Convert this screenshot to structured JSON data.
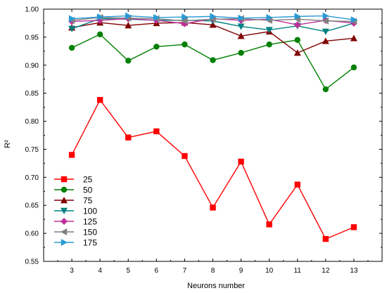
{
  "chart_data": {
    "type": "line",
    "title": "",
    "xlabel": "Neurons number",
    "ylabel": "R²",
    "categories": [
      3,
      4,
      5,
      6,
      7,
      8,
      9,
      10,
      11,
      12,
      13
    ],
    "xlim": [
      2,
      14
    ],
    "ylim": [
      0.55,
      1.0
    ],
    "yticks": [
      "0.55",
      "0.60",
      "0.65",
      "0.70",
      "0.75",
      "0.80",
      "0.85",
      "0.90",
      "0.95",
      "1.00"
    ],
    "grid": false,
    "legend_position": "bottom-left",
    "series": [
      {
        "name": "25",
        "color": "#ff0000",
        "marker": "square",
        "values": [
          0.74,
          0.838,
          0.771,
          0.782,
          0.738,
          0.646,
          0.728,
          0.616,
          0.687,
          0.59,
          0.611
        ]
      },
      {
        "name": "50",
        "color": "#008000",
        "marker": "circle",
        "values": [
          0.931,
          0.955,
          0.908,
          0.933,
          0.937,
          0.909,
          0.922,
          0.937,
          0.945,
          0.857,
          0.896
        ]
      },
      {
        "name": "75",
        "color": "#800000",
        "marker": "triangle-up",
        "values": [
          0.967,
          0.976,
          0.971,
          0.975,
          0.976,
          0.972,
          0.952,
          0.96,
          0.922,
          0.943,
          0.948
        ]
      },
      {
        "name": "100",
        "color": "#008080",
        "marker": "triangle-down",
        "values": [
          0.965,
          0.983,
          0.982,
          0.98,
          0.98,
          0.979,
          0.969,
          0.963,
          0.97,
          0.96,
          0.975
        ]
      },
      {
        "name": "125",
        "color": "#bf2f9a",
        "marker": "diamond",
        "values": [
          0.978,
          0.98,
          0.983,
          0.98,
          0.974,
          0.983,
          0.98,
          0.982,
          0.972,
          0.98,
          0.975
        ]
      },
      {
        "name": "150",
        "color": "#808080",
        "marker": "triangle-left",
        "values": [
          0.98,
          0.985,
          0.984,
          0.983,
          0.979,
          0.982,
          0.983,
          0.98,
          0.982,
          0.979,
          0.978
        ]
      },
      {
        "name": "175",
        "color": "#2a9ad4",
        "marker": "triangle-right",
        "values": [
          0.983,
          0.986,
          0.988,
          0.985,
          0.986,
          0.987,
          0.984,
          0.985,
          0.987,
          0.988,
          0.981
        ]
      }
    ]
  }
}
